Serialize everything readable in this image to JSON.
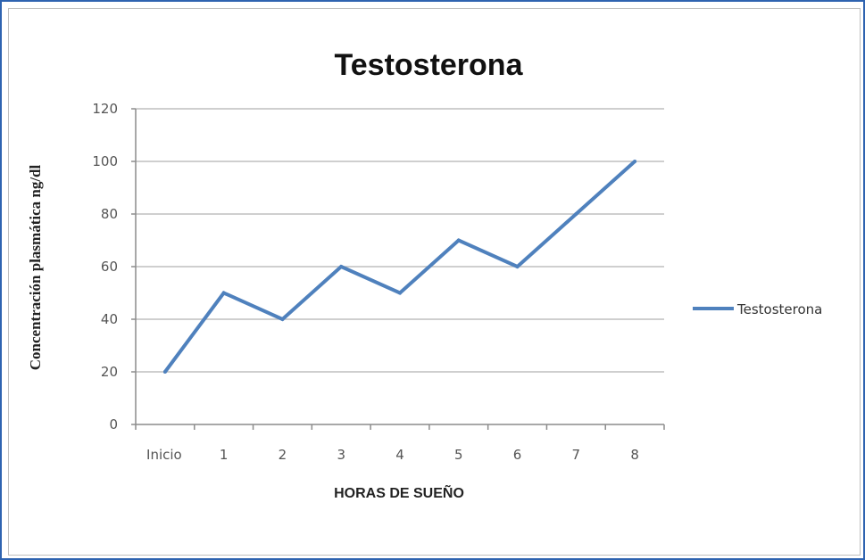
{
  "chart_data": {
    "type": "line",
    "title": "Testosterona",
    "xlabel": "HORAS DE SUEÑO",
    "ylabel": "Concentración plasmática ng/dl",
    "categories": [
      "Inicio",
      "1",
      "2",
      "3",
      "4",
      "5",
      "6",
      "7",
      "8"
    ],
    "series": [
      {
        "name": "Testosterona",
        "values": [
          20,
          50,
          40,
          60,
          50,
          70,
          60,
          80,
          100
        ]
      }
    ],
    "ylim": [
      0,
      120
    ],
    "yticks": [
      0,
      20,
      40,
      60,
      80,
      100,
      120
    ],
    "grid": "horizontal",
    "legend_position": "right",
    "colors": {
      "series": "#4f81bd",
      "frame": "#2e63b0",
      "grid": "#bfbfbf"
    }
  }
}
